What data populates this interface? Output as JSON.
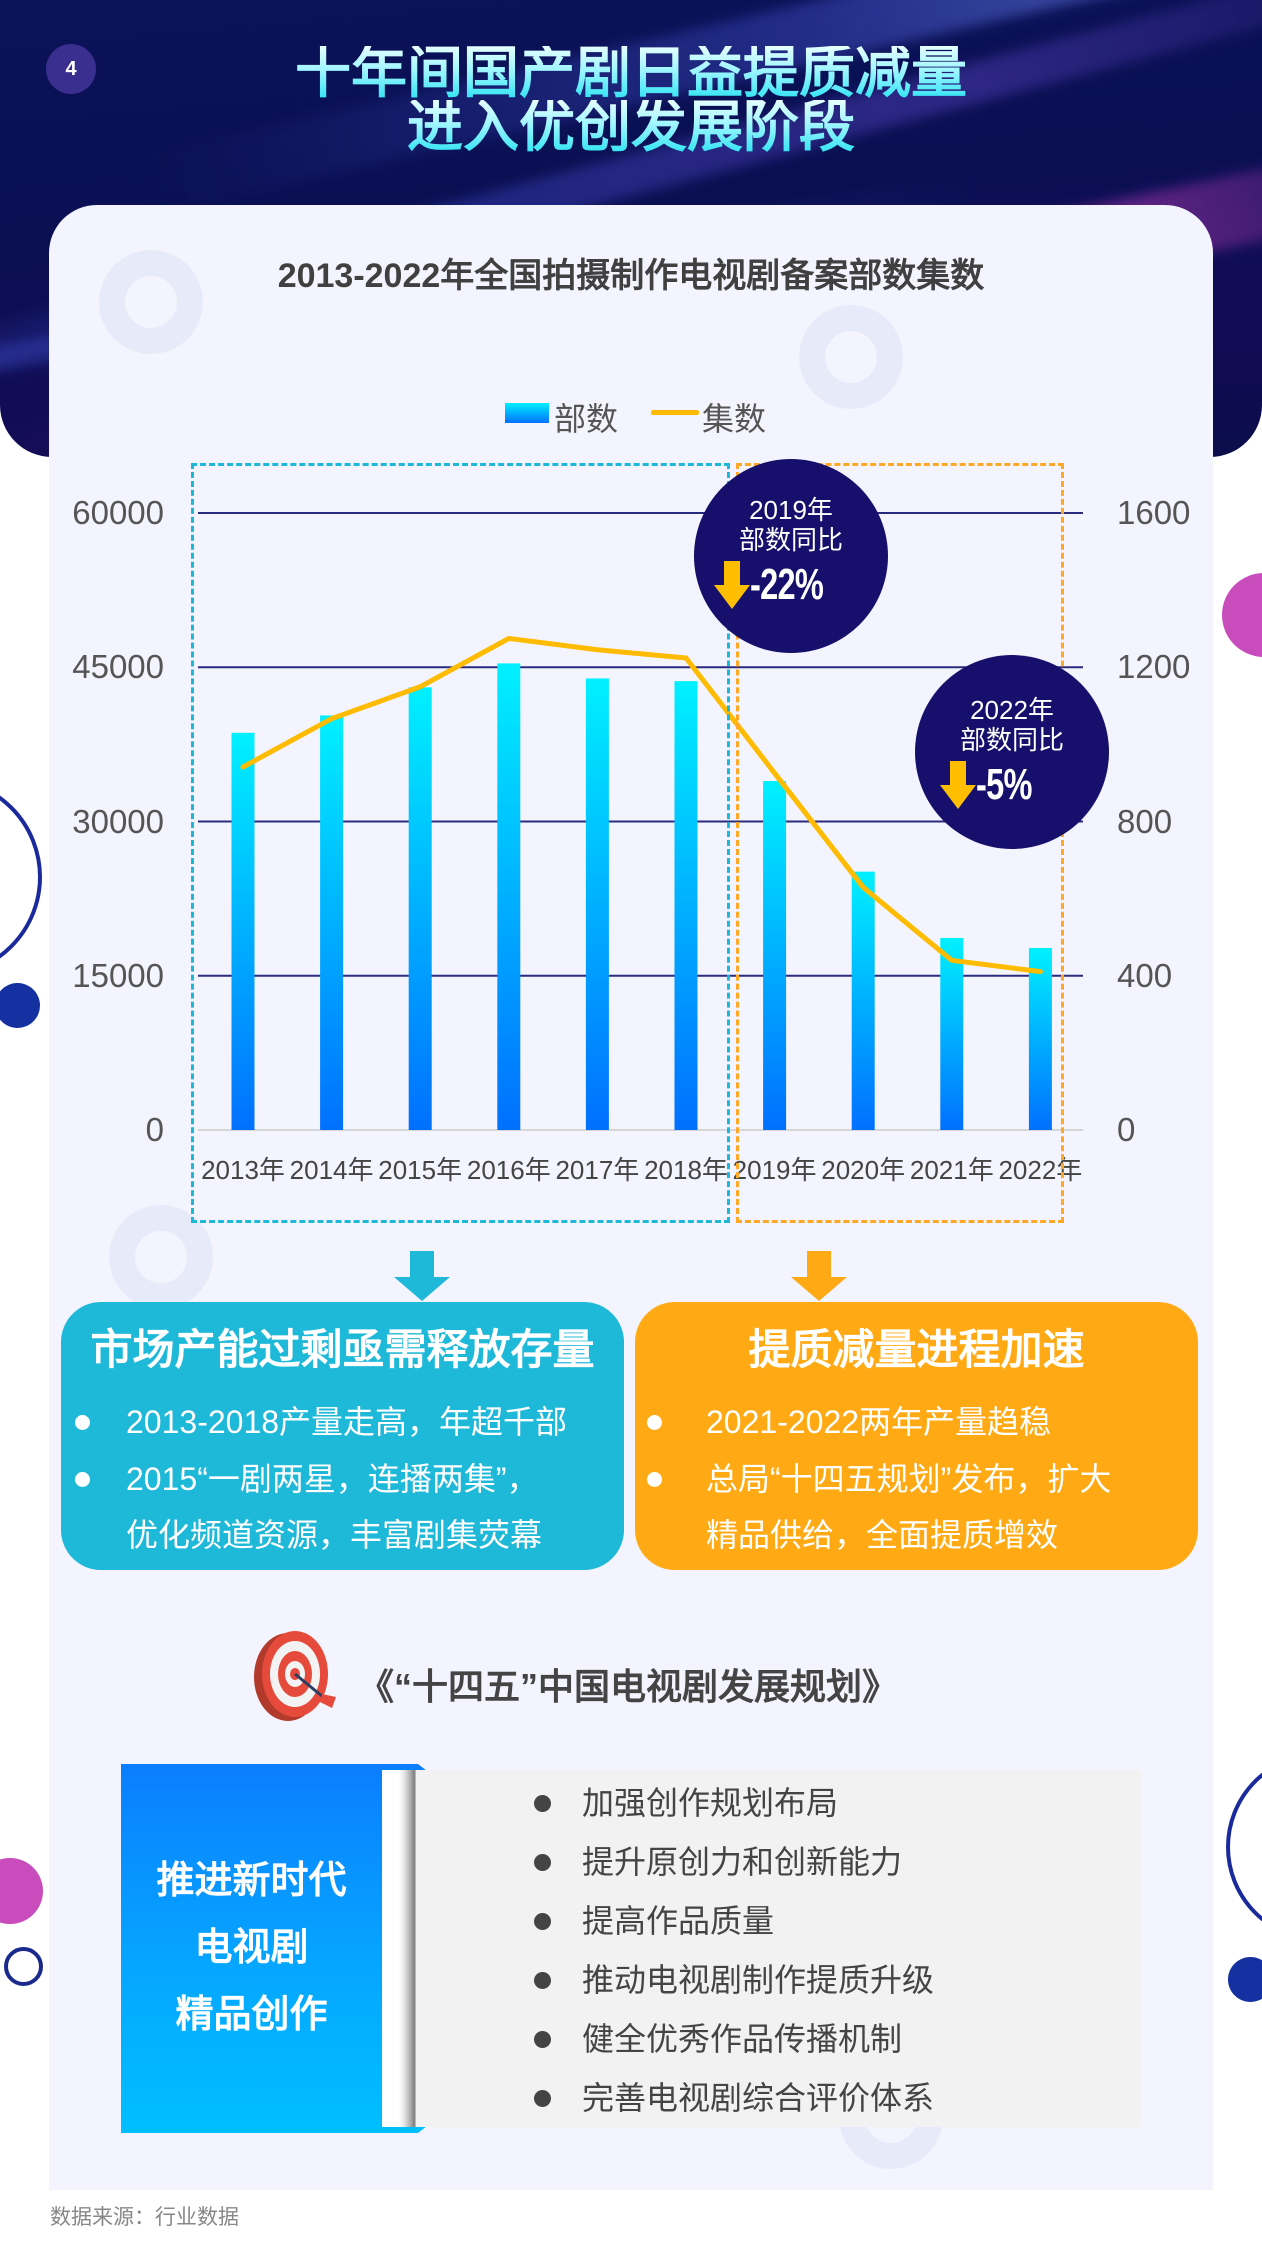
{
  "page": {
    "number": "4"
  },
  "header": {
    "title_line1": "十年间国产剧日益提质减量",
    "title_line2": "进入优创发展阶段"
  },
  "chart_section": {
    "title": "2013-2022年全国拍摄制作电视剧备案部数集数",
    "legend": [
      {
        "label": "部数",
        "marker": "bar-swatch"
      },
      {
        "label": "集数",
        "marker": "line-swatch"
      }
    ]
  },
  "callouts": [
    {
      "year_label": "2019年",
      "metric_label": "部数同比",
      "change": "-22%",
      "icon": "down-arrow-icon"
    },
    {
      "year_label": "2022年",
      "metric_label": "部数同比",
      "change": "-5%",
      "icon": "down-arrow-icon"
    }
  ],
  "summary_boxes": [
    {
      "title": "市场产能过剩亟需释放存量",
      "bullets": [
        {
          "lines": [
            "2013-2018产量走高，年超千部"
          ]
        },
        {
          "lines": [
            "2015“一剧两星，连播两集”，",
            "优化频道资源，丰富剧集荧幕"
          ]
        }
      ]
    },
    {
      "title": "提质减量进程加速",
      "bullets": [
        {
          "lines": [
            "2021-2022两年产量趋稳"
          ]
        },
        {
          "lines": [
            "总局“十四五规划”发布，扩大",
            "精品供给，全面提质增效"
          ]
        }
      ]
    }
  ],
  "plan": {
    "icon": "target-icon",
    "title": "《“十四五”中国电视剧发展规划》",
    "focus_lines": [
      "推进新时代",
      "电视剧",
      "精品创作"
    ],
    "items": [
      "加强创作规划布局",
      "提升原创力和创新能力",
      "提高作品质量",
      "推动电视剧制作提质升级",
      "健全优秀作品传播机制",
      "完善电视剧综合评价体系"
    ]
  },
  "footer": {
    "source": "数据来源：行业数据"
  },
  "colors": {
    "header_bg": "#0a0f52",
    "title_gradient_top": "#e6ffff",
    "title_gradient_bottom": "#2ee3f2",
    "card_bg": "#f3f4fd",
    "badge_bg": "#160f6b",
    "badge_arrow": "#ffbf00",
    "cyan_accent": "#1eb8d8",
    "orange_accent": "#ffaa14",
    "plan_blue_top": "#0a7eff",
    "plan_blue_bottom": "#00bfff",
    "magenta_deco": "#c94cbd",
    "navy_deco": "#1a2a9c"
  },
  "chart_data": {
    "type": "bar",
    "title": "2013-2022年全国拍摄制作电视剧备案部数集数",
    "categories": [
      "2013年",
      "2014年",
      "2015年",
      "2016年",
      "2017年",
      "2018年",
      "2019年",
      "2020年",
      "2021年",
      "2022年"
    ],
    "series": [
      {
        "name": "部数",
        "type": "bar",
        "axis": "right",
        "values": [
          1030,
          1075,
          1148,
          1210,
          1171,
          1164,
          905,
          670,
          498,
          472
        ]
      },
      {
        "name": "集数",
        "type": "line",
        "axis": "left",
        "values": [
          35300,
          40000,
          43100,
          47800,
          46700,
          45900,
          34700,
          23600,
          16500,
          15400
        ]
      }
    ],
    "y_left": {
      "min": 0,
      "max": 60000,
      "ticks": [
        0,
        15000,
        30000,
        45000,
        60000
      ]
    },
    "y_right": {
      "min": 0,
      "max": 1600,
      "ticks": [
        0,
        400,
        800,
        1200,
        1600
      ]
    },
    "xlabel": "",
    "ylabel": "",
    "grid": true,
    "legend_position": "top",
    "highlight_ranges": [
      {
        "from": "2013年",
        "to": "2018年",
        "style": "dashed",
        "color": "#1db8d8"
      },
      {
        "from": "2019年",
        "to": "2022年",
        "style": "dashed",
        "color": "#ffa726"
      }
    ],
    "annotations": [
      {
        "text": "2019年 部数同比 -22%",
        "category": "2019年"
      },
      {
        "text": "2022年 部数同比 -5%",
        "category": "2022年"
      }
    ],
    "colors": {
      "bar_top": "#00f0ff",
      "bar_bottom": "#0070ff",
      "line": "#ffbb00",
      "grid": "#2b2b7e",
      "baseline": "#d6d6d6"
    }
  }
}
